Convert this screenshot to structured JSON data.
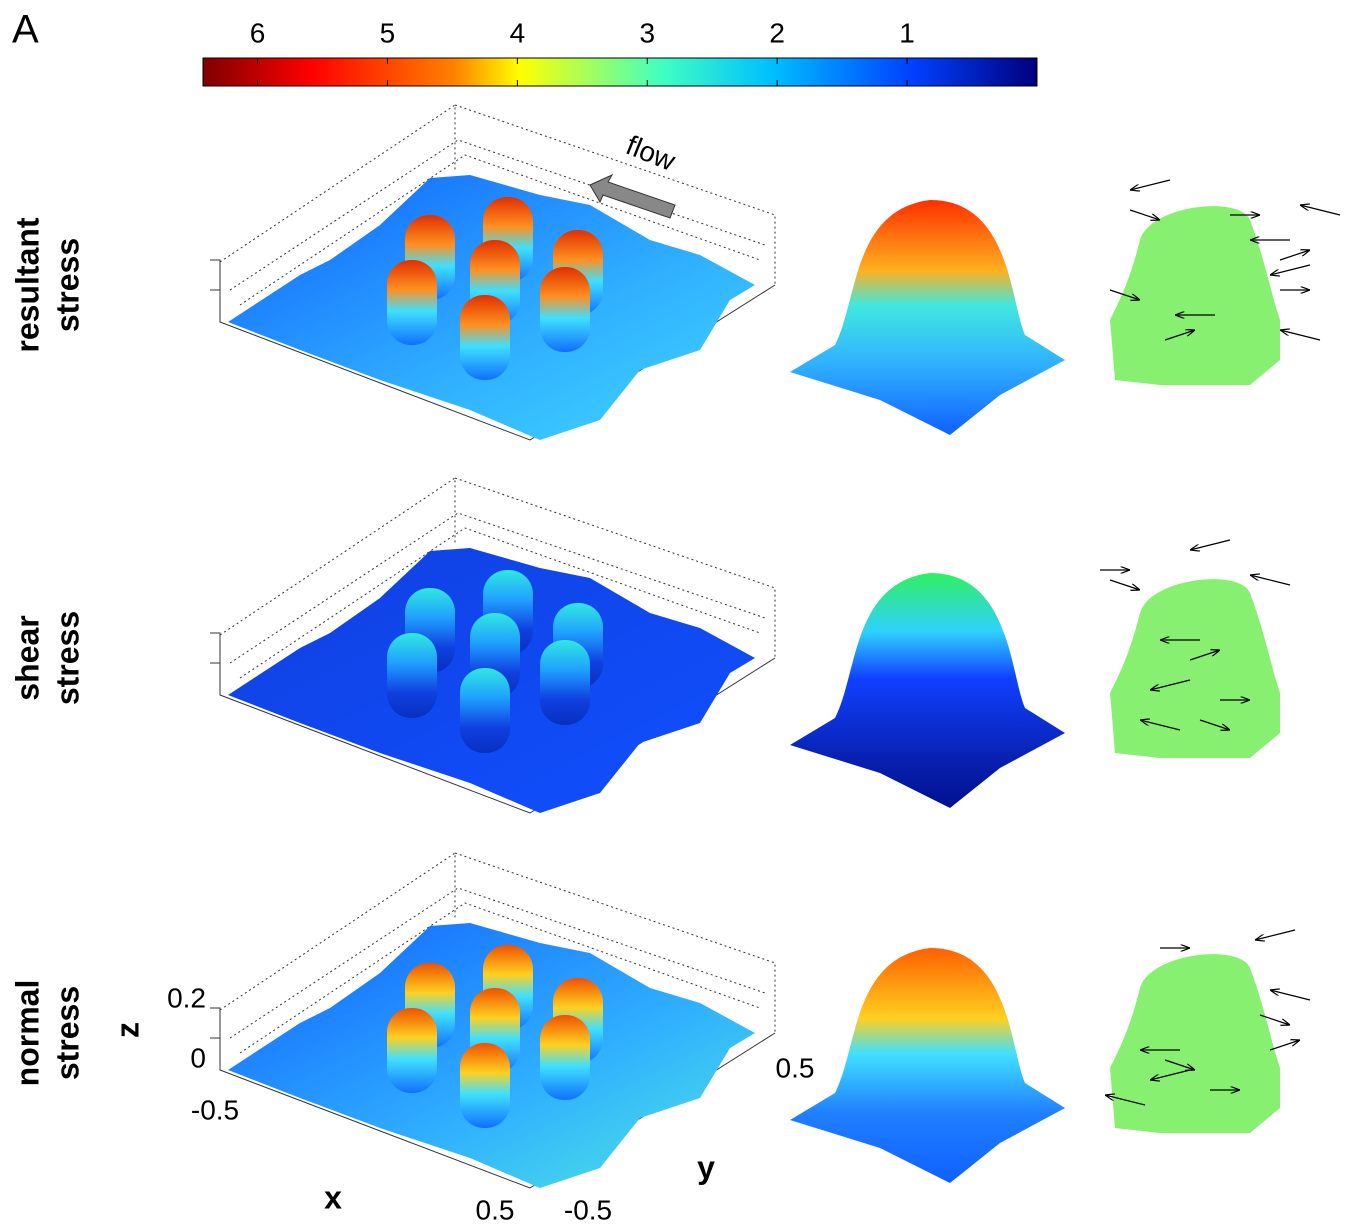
{
  "panel_label": "A",
  "colorbar": {
    "lim": [
      6.42,
      0
    ],
    "ticks": [
      6,
      5,
      4,
      3,
      2,
      1
    ]
  },
  "flow_label": "flow",
  "rows": [
    {
      "title": [
        "resultant",
        "stress"
      ]
    },
    {
      "title": [
        "shear",
        "stress"
      ]
    },
    {
      "title": [
        "normal",
        "stress"
      ]
    }
  ],
  "axes": {
    "z_label": "z",
    "z_ticks": [
      0.2,
      0
    ],
    "x_label": "x",
    "x_ticks": [
      -0.5,
      0.5
    ],
    "y_label": "y",
    "y_ticks": [
      0.5,
      -0.5
    ]
  }
}
